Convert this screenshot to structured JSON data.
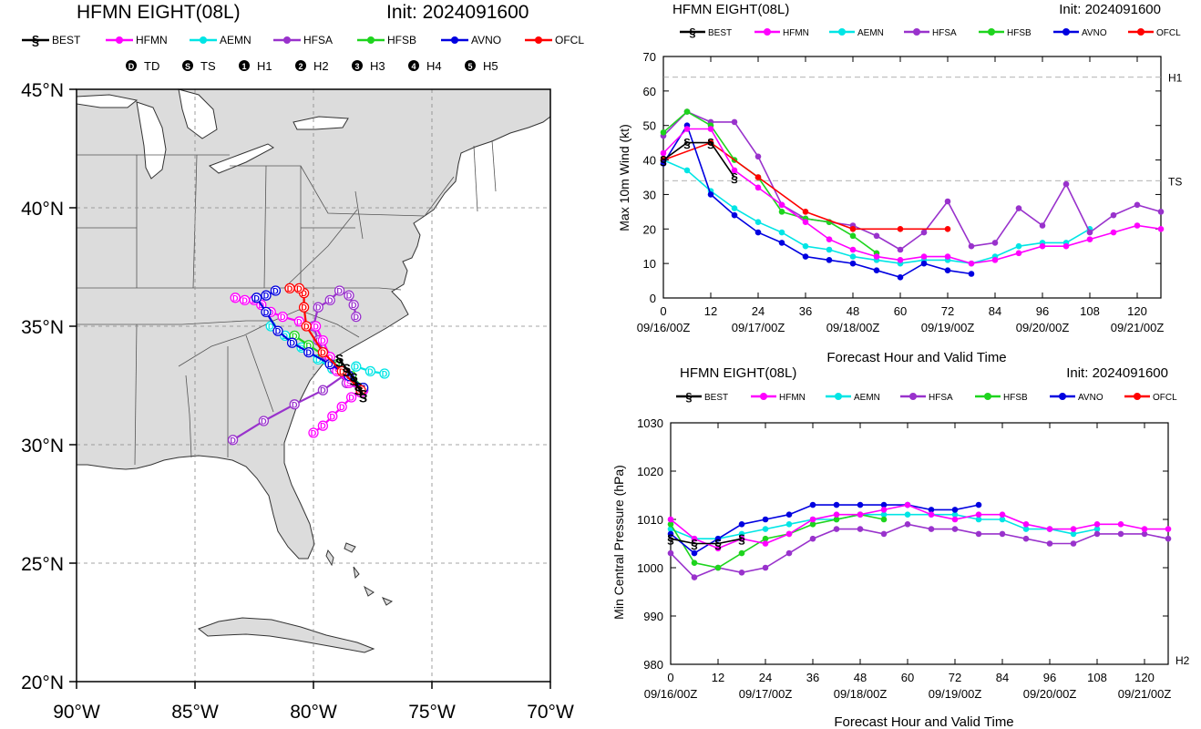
{
  "colors": {
    "BEST": "#000000",
    "HFMN": "#ff00ff",
    "AEMN": "#00e5e5",
    "HFSA": "#9932cc",
    "HFSB": "#1ed41e",
    "AVNO": "#0000e0",
    "OFCL": "#ff0000",
    "land": "#dcdcdc",
    "water": "#ffffff"
  },
  "map": {
    "title": "HFMN EIGHT(08L)",
    "init": "Init: 2024091600",
    "legend_models": [
      "BEST",
      "HFMN",
      "AEMN",
      "HFSA",
      "HFSB",
      "AVNO",
      "OFCL"
    ],
    "intensity_legend": [
      {
        "symbol": "D",
        "label": "TD"
      },
      {
        "symbol": "S",
        "label": "TS"
      },
      {
        "symbol": "1",
        "label": "H1"
      },
      {
        "symbol": "2",
        "label": "H2"
      },
      {
        "symbol": "3",
        "label": "H3"
      },
      {
        "symbol": "4",
        "label": "H4"
      },
      {
        "symbol": "5",
        "label": "H5"
      }
    ],
    "lat_labels": [
      "45°N",
      "40°N",
      "35°N",
      "30°N",
      "25°N",
      "20°N"
    ],
    "lon_labels": [
      "90°W",
      "85°W",
      "80°W",
      "75°W",
      "70°W"
    ]
  },
  "chart_data": [
    {
      "type": "line",
      "title": "HFMN EIGHT(08L)",
      "init": "Init: 2024091600",
      "xlabel": "Forecast Hour and Valid Time",
      "ylabel": "Max 10m Wind (kt)",
      "xlim": [
        0,
        126
      ],
      "ylim": [
        0,
        70
      ],
      "xticks": [
        0,
        12,
        24,
        36,
        48,
        60,
        72,
        84,
        96,
        108,
        120
      ],
      "yticks": [
        0,
        10,
        20,
        30,
        40,
        50,
        60,
        70
      ],
      "date_labels": [
        {
          "x": 0,
          "label": "09/16/00Z"
        },
        {
          "x": 24,
          "label": "09/17/00Z"
        },
        {
          "x": 48,
          "label": "09/18/00Z"
        },
        {
          "x": 72,
          "label": "09/19/00Z"
        },
        {
          "x": 96,
          "label": "09/20/00Z"
        },
        {
          "x": 120,
          "label": "09/21/00Z"
        }
      ],
      "ref_lines": [
        {
          "y": 64,
          "label": "H1"
        },
        {
          "y": 34,
          "label": "TS"
        }
      ],
      "series": [
        {
          "name": "BEST",
          "x": [
            0,
            6,
            12,
            18
          ],
          "y": [
            40,
            45,
            45,
            35
          ]
        },
        {
          "name": "HFMN",
          "x": [
            0,
            6,
            12,
            18,
            24,
            30,
            36,
            42,
            48,
            54,
            60,
            66,
            72,
            78,
            84,
            90,
            96,
            102,
            108,
            114,
            120,
            126
          ],
          "y": [
            42,
            49,
            49,
            37,
            32,
            27,
            22,
            17,
            14,
            12,
            11,
            12,
            12,
            10,
            11,
            13,
            15,
            15,
            17,
            19,
            21,
            20
          ]
        },
        {
          "name": "AEMN",
          "x": [
            0,
            6,
            12,
            18,
            24,
            30,
            36,
            42,
            48,
            54,
            60,
            66,
            72,
            78,
            84,
            90,
            96,
            102,
            108
          ],
          "y": [
            40,
            37,
            31,
            26,
            22,
            19,
            15,
            14,
            12,
            11,
            10,
            11,
            11,
            10,
            12,
            15,
            16,
            16,
            20
          ]
        },
        {
          "name": "HFSA",
          "x": [
            0,
            6,
            12,
            18,
            24,
            30,
            36,
            42,
            48,
            54,
            60,
            66,
            72,
            78,
            84,
            90,
            96,
            102,
            108,
            114,
            120,
            126
          ],
          "y": [
            47,
            54,
            51,
            51,
            41,
            27,
            23,
            22,
            21,
            18,
            14,
            19,
            28,
            15,
            16,
            26,
            21,
            33,
            19,
            24,
            27,
            25
          ]
        },
        {
          "name": "HFSB",
          "x": [
            0,
            6,
            12,
            18,
            24,
            30,
            36,
            42,
            48,
            54
          ],
          "y": [
            48,
            54,
            50,
            40,
            35,
            25,
            23,
            22,
            18,
            13
          ]
        },
        {
          "name": "AVNO",
          "x": [
            0,
            6,
            12,
            18,
            24,
            30,
            36,
            42,
            48,
            54,
            60,
            66,
            72,
            78
          ],
          "y": [
            39,
            50,
            30,
            24,
            19,
            16,
            12,
            11,
            10,
            8,
            6,
            10,
            8,
            7
          ]
        },
        {
          "name": "OFCL",
          "x": [
            0,
            12,
            24,
            36,
            48,
            60,
            72
          ],
          "y": [
            40,
            45,
            35,
            25,
            20,
            20,
            20
          ]
        }
      ]
    },
    {
      "type": "line",
      "title": "HFMN EIGHT(08L)",
      "init": "Init: 2024091600",
      "xlabel": "Forecast Hour and Valid Time",
      "ylabel": "Min Central Pressure (hPa)",
      "xlim": [
        0,
        126
      ],
      "ylim": [
        980,
        1030
      ],
      "xticks": [
        0,
        12,
        24,
        36,
        48,
        60,
        72,
        84,
        96,
        108,
        120
      ],
      "yticks": [
        980,
        990,
        1000,
        1010,
        1020,
        1030
      ],
      "date_labels": [
        {
          "x": 0,
          "label": "09/16/00Z"
        },
        {
          "x": 24,
          "label": "09/17/00Z"
        },
        {
          "x": 48,
          "label": "09/18/00Z"
        },
        {
          "x": 72,
          "label": "09/19/00Z"
        },
        {
          "x": 96,
          "label": "09/20/00Z"
        },
        {
          "x": 120,
          "label": "09/21/00Z"
        }
      ],
      "ref_lines": [
        {
          "y": 980,
          "label": "H2"
        }
      ],
      "series": [
        {
          "name": "BEST",
          "x": [
            0,
            6,
            12,
            18
          ],
          "y": [
            1006,
            1005,
            1005,
            1006
          ]
        },
        {
          "name": "HFMN",
          "x": [
            0,
            6,
            12,
            18,
            24,
            30,
            36,
            42,
            48,
            54,
            60,
            66,
            72,
            78,
            84,
            90,
            96,
            102,
            108,
            114,
            120,
            126
          ],
          "y": [
            1010,
            1006,
            1004,
            1006,
            1005,
            1007,
            1010,
            1011,
            1011,
            1012,
            1013,
            1011,
            1010,
            1011,
            1011,
            1009,
            1008,
            1008,
            1009,
            1009,
            1008,
            1008
          ]
        },
        {
          "name": "AEMN",
          "x": [
            0,
            6,
            12,
            18,
            24,
            30,
            36,
            42,
            48,
            54,
            60,
            66,
            72,
            78,
            84,
            90,
            96,
            102,
            108
          ],
          "y": [
            1008,
            1006,
            1006,
            1007,
            1008,
            1009,
            1010,
            1010,
            1011,
            1011,
            1011,
            1011,
            1011,
            1010,
            1010,
            1008,
            1008,
            1007,
            1008
          ]
        },
        {
          "name": "HFSA",
          "x": [
            0,
            6,
            12,
            18,
            24,
            30,
            36,
            42,
            48,
            54,
            60,
            66,
            72,
            78,
            84,
            90,
            96,
            102,
            108,
            114,
            120,
            126
          ],
          "y": [
            1003,
            998,
            1000,
            999,
            1000,
            1003,
            1006,
            1008,
            1008,
            1007,
            1009,
            1008,
            1008,
            1007,
            1007,
            1006,
            1005,
            1005,
            1007,
            1007,
            1007,
            1006
          ]
        },
        {
          "name": "HFSB",
          "x": [
            0,
            6,
            12,
            18,
            24,
            30,
            36,
            42,
            48,
            54
          ],
          "y": [
            1009,
            1001,
            1000,
            1003,
            1006,
            1007,
            1009,
            1010,
            1011,
            1010
          ]
        },
        {
          "name": "AVNO",
          "x": [
            0,
            6,
            12,
            18,
            24,
            30,
            36,
            42,
            48,
            54,
            60,
            66,
            72,
            78
          ],
          "y": [
            1007,
            1003,
            1006,
            1009,
            1010,
            1011,
            1013,
            1013,
            1013,
            1013,
            1013,
            1012,
            1012,
            1013
          ]
        },
        {
          "name": "OFCL",
          "x": [],
          "y": []
        }
      ]
    }
  ],
  "tracks": [
    {
      "name": "BEST",
      "pts": [
        [
          -77.9,
          32.1,
          "S"
        ],
        [
          -78.1,
          32.4,
          "S"
        ],
        [
          -78.3,
          32.8,
          "S"
        ],
        [
          -78.6,
          33.2,
          "S"
        ],
        [
          -78.9,
          33.6,
          "D"
        ]
      ]
    },
    {
      "name": "HFMN",
      "pts": [
        [
          -77.9,
          32.3,
          "S"
        ],
        [
          -78.5,
          32.6,
          "S"
        ],
        [
          -79.0,
          33.1,
          "S"
        ],
        [
          -79.3,
          33.7,
          "D"
        ],
        [
          -79.6,
          34.4,
          "D"
        ],
        [
          -79.9,
          35.0,
          "D"
        ],
        [
          -80.6,
          35.2,
          "D"
        ],
        [
          -81.3,
          35.4,
          "D"
        ],
        [
          -81.8,
          35.6,
          "D"
        ],
        [
          -82.2,
          35.9,
          "D"
        ],
        [
          -82.5,
          36.1,
          "D"
        ],
        [
          -82.9,
          36.1,
          "D"
        ],
        [
          -83.3,
          36.2,
          "D"
        ]
      ]
    },
    {
      "name": "HFMN",
      "pts": [
        [
          -78.0,
          32.2,
          "S"
        ],
        [
          -78.4,
          32.0,
          "D"
        ],
        [
          -78.8,
          31.6,
          "D"
        ],
        [
          -79.2,
          31.2,
          "D"
        ],
        [
          -79.6,
          30.8,
          "D"
        ],
        [
          -80.0,
          30.5,
          "D"
        ]
      ]
    },
    {
      "name": "AEMN",
      "pts": [
        [
          -77.9,
          32.3,
          "S"
        ],
        [
          -78.5,
          32.8,
          "S"
        ],
        [
          -79.2,
          33.2,
          "D"
        ],
        [
          -79.8,
          33.6,
          "D"
        ],
        [
          -80.5,
          34.1,
          "D"
        ],
        [
          -81.2,
          34.6,
          "D"
        ],
        [
          -81.8,
          35.0,
          "D"
        ]
      ]
    },
    {
      "name": "AEMN",
      "pts": [
        [
          -78.2,
          33.3,
          "D"
        ],
        [
          -77.6,
          33.1,
          "D"
        ],
        [
          -77.0,
          33.0,
          "D"
        ]
      ]
    },
    {
      "name": "HFSA",
      "pts": [
        [
          -77.9,
          32.3,
          "S"
        ],
        [
          -78.6,
          32.6,
          "S"
        ],
        [
          -79.1,
          33.2,
          "D"
        ],
        [
          -79.5,
          33.8,
          "D"
        ],
        [
          -79.8,
          34.4,
          "D"
        ],
        [
          -80.0,
          35.0,
          "D"
        ],
        [
          -79.8,
          35.8,
          "D"
        ],
        [
          -79.3,
          36.1,
          "D"
        ],
        [
          -78.9,
          36.5,
          "D"
        ],
        [
          -78.5,
          36.3,
          "D"
        ],
        [
          -78.3,
          35.9,
          "D"
        ],
        [
          -78.2,
          35.4,
          "D"
        ]
      ]
    },
    {
      "name": "HFSA",
      "pts": [
        [
          -78.6,
          33.0,
          "D"
        ],
        [
          -79.6,
          32.3,
          "D"
        ],
        [
          -80.8,
          31.7,
          "D"
        ],
        [
          -82.1,
          31.0,
          "D"
        ],
        [
          -83.4,
          30.2,
          "D"
        ]
      ]
    },
    {
      "name": "HFSB",
      "pts": [
        [
          -77.9,
          32.4,
          "S"
        ],
        [
          -78.4,
          32.9,
          "S"
        ],
        [
          -79.0,
          33.4,
          "D"
        ],
        [
          -79.6,
          33.8,
          "D"
        ],
        [
          -80.2,
          34.2,
          "D"
        ],
        [
          -80.8,
          34.6,
          "D"
        ]
      ]
    },
    {
      "name": "AVNO",
      "pts": [
        [
          -77.9,
          32.4,
          "S"
        ],
        [
          -78.5,
          32.9,
          "S"
        ],
        [
          -79.3,
          33.4,
          "D"
        ],
        [
          -80.2,
          33.9,
          "D"
        ],
        [
          -80.9,
          34.3,
          "D"
        ],
        [
          -81.5,
          34.8,
          "D"
        ],
        [
          -82.0,
          35.6,
          "D"
        ],
        [
          -82.4,
          36.2,
          "D"
        ],
        [
          -82.0,
          36.3,
          "D"
        ],
        [
          -81.6,
          36.5,
          "D"
        ]
      ]
    },
    {
      "name": "OFCL",
      "pts": [
        [
          -78.0,
          32.3,
          "S"
        ],
        [
          -78.8,
          33.1,
          "D"
        ],
        [
          -79.6,
          33.9,
          "D"
        ],
        [
          -80.3,
          35.0,
          "D"
        ],
        [
          -80.4,
          35.8,
          "D"
        ],
        [
          -80.4,
          36.4,
          "D"
        ],
        [
          -80.6,
          36.6,
          "D"
        ],
        [
          -81.0,
          36.6,
          "D"
        ]
      ]
    }
  ]
}
